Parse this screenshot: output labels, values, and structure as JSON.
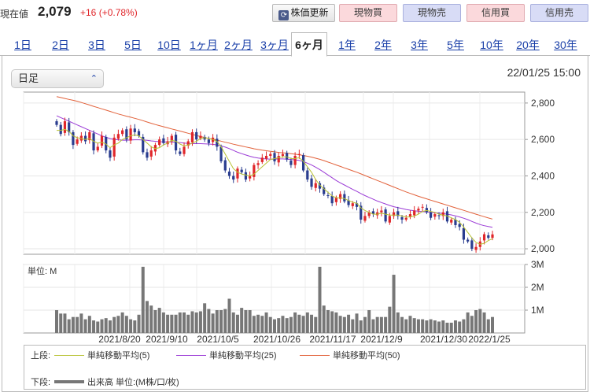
{
  "header": {
    "price_label": "現在値",
    "price": "2,079",
    "change": "+16 (+0.78%)",
    "update_button": "株価更新",
    "trade_buttons": [
      "現物買",
      "現物売",
      "信用買",
      "信用売"
    ]
  },
  "tabs": [
    "1日",
    "2日",
    "3日",
    "5日",
    "10日",
    "1ヶ月",
    "2ヶ月",
    "3ヶ月",
    "6ヶ月",
    "1年",
    "2年",
    "3年",
    "5年",
    "10年",
    "20年",
    "30年"
  ],
  "active_tab": "6ヶ月",
  "period_select": {
    "value": "日足"
  },
  "datetime": "22/01/25 15:00",
  "legend": {
    "upper_label": "上段:",
    "lower_label": "下段:",
    "sma5": "単純移動平均(5)",
    "sma25": "単純移動平均(25)",
    "sma50": "単純移動平均(50)",
    "volume": "出来高 単位:(M株/口/枚)"
  },
  "colors": {
    "up": "#e0262a",
    "down": "#2a3d8f",
    "sma5": "#b8c234",
    "sma25": "#9b3bd6",
    "sma50": "#e2613a",
    "volume": "#777777",
    "accent": "#1a3fa8"
  },
  "chart_data": {
    "type": "candlestick",
    "x_tick_labels": [
      "2021/8/20",
      "2021/9/10",
      "2021/10/5",
      "2021/10/26",
      "2021/11/17",
      "2021/12/9",
      "2021/12/30",
      "2022/1/25"
    ],
    "y_ticks": [
      "2,800",
      "2,600",
      "2,400",
      "2,200",
      "2,000"
    ],
    "ylim": [
      1970,
      2860
    ],
    "volume_ticks": [
      "3M",
      "2M",
      "1M"
    ],
    "volume_unit_label": "単位: M",
    "volume_ylim": [
      0,
      3.0
    ],
    "close": [
      2680,
      2630,
      2700,
      2640,
      2570,
      2600,
      2620,
      2590,
      2640,
      2540,
      2560,
      2620,
      2540,
      2500,
      2610,
      2630,
      2650,
      2600,
      2660,
      2640,
      2620,
      2530,
      2500,
      2540,
      2570,
      2600,
      2580,
      2590,
      2620,
      2540,
      2520,
      2560,
      2590,
      2640,
      2600,
      2620,
      2600,
      2580,
      2610,
      2560,
      2480,
      2430,
      2400,
      2380,
      2440,
      2420,
      2380,
      2400,
      2460,
      2470,
      2500,
      2510,
      2520,
      2480,
      2510,
      2520,
      2490,
      2460,
      2510,
      2520,
      2430,
      2380,
      2340,
      2360,
      2330,
      2300,
      2290,
      2250,
      2280,
      2300,
      2260,
      2240,
      2250,
      2230,
      2160,
      2180,
      2200,
      2190,
      2200,
      2210,
      2150,
      2180,
      2200,
      2180,
      2160,
      2170,
      2190,
      2210,
      2220,
      2230,
      2200,
      2170,
      2190,
      2180,
      2200,
      2150,
      2160,
      2130,
      2120,
      2050,
      2040,
      2000,
      2010,
      2040,
      2080,
      2060,
      2079
    ],
    "sma5": [
      2650,
      2650,
      2655,
      2645,
      2620,
      2610,
      2605,
      2600,
      2605,
      2590,
      2580,
      2585,
      2575,
      2555,
      2570,
      2580,
      2600,
      2610,
      2620,
      2625,
      2620,
      2600,
      2580,
      2560,
      2550,
      2555,
      2570,
      2580,
      2595,
      2590,
      2575,
      2565,
      2570,
      2580,
      2590,
      2605,
      2610,
      2605,
      2600,
      2590,
      2560,
      2520,
      2480,
      2440,
      2420,
      2410,
      2405,
      2400,
      2410,
      2430,
      2450,
      2470,
      2490,
      2495,
      2500,
      2505,
      2505,
      2495,
      2495,
      2500,
      2480,
      2450,
      2420,
      2380,
      2350,
      2330,
      2310,
      2290,
      2280,
      2280,
      2275,
      2265,
      2255,
      2250,
      2225,
      2210,
      2200,
      2190,
      2190,
      2195,
      2190,
      2185,
      2185,
      2185,
      2180,
      2175,
      2175,
      2180,
      2190,
      2205,
      2210,
      2205,
      2200,
      2190,
      2185,
      2180,
      2170,
      2160,
      2145,
      2120,
      2090,
      2060,
      2035,
      2025,
      2030,
      2045,
      2055
    ],
    "sma25": [
      2730,
      2720,
      2710,
      2700,
      2690,
      2680,
      2670,
      2660,
      2650,
      2640,
      2630,
      2620,
      2612,
      2605,
      2600,
      2598,
      2596,
      2596,
      2597,
      2598,
      2598,
      2597,
      2595,
      2592,
      2590,
      2588,
      2587,
      2586,
      2586,
      2585,
      2583,
      2580,
      2578,
      2577,
      2577,
      2577,
      2576,
      2575,
      2573,
      2570,
      2565,
      2558,
      2550,
      2540,
      2530,
      2522,
      2515,
      2508,
      2502,
      2498,
      2495,
      2493,
      2492,
      2492,
      2493,
      2493,
      2492,
      2490,
      2488,
      2485,
      2478,
      2470,
      2460,
      2448,
      2435,
      2420,
      2405,
      2390,
      2375,
      2362,
      2350,
      2338,
      2326,
      2315,
      2303,
      2292,
      2282,
      2272,
      2262,
      2254,
      2246,
      2238,
      2231,
      2226,
      2221,
      2216,
      2212,
      2209,
      2206,
      2204,
      2202,
      2200,
      2198,
      2196,
      2193,
      2190,
      2186,
      2181,
      2175,
      2168,
      2160,
      2150,
      2141,
      2133,
      2127,
      2122,
      2118
    ],
    "sma50": [
      2835,
      2830,
      2825,
      2820,
      2815,
      2810,
      2803,
      2796,
      2789,
      2782,
      2775,
      2768,
      2761,
      2754,
      2747,
      2740,
      2734,
      2728,
      2722,
      2716,
      2710,
      2703,
      2696,
      2689,
      2682,
      2676,
      2670,
      2664,
      2658,
      2652,
      2646,
      2640,
      2634,
      2628,
      2622,
      2616,
      2611,
      2606,
      2601,
      2596,
      2591,
      2585,
      2580,
      2574,
      2569,
      2564,
      2559,
      2554,
      2549,
      2545,
      2541,
      2538,
      2535,
      2532,
      2529,
      2527,
      2525,
      2522,
      2519,
      2516,
      2512,
      2508,
      2503,
      2497,
      2491,
      2484,
      2476,
      2468,
      2460,
      2452,
      2444,
      2436,
      2428,
      2420,
      2411,
      2402,
      2393,
      2384,
      2375,
      2366,
      2357,
      2348,
      2339,
      2330,
      2321,
      2312,
      2304,
      2296,
      2288,
      2281,
      2274,
      2267,
      2260,
      2253,
      2246,
      2239,
      2232,
      2225,
      2218,
      2211,
      2204,
      2197,
      2190,
      2183,
      2176,
      2169,
      2163
    ],
    "volume": [
      1.0,
      0.85,
      0.85,
      0.6,
      0.7,
      0.7,
      0.85,
      0.6,
      0.75,
      0.55,
      0.5,
      0.6,
      0.65,
      0.55,
      0.7,
      0.75,
      0.9,
      0.75,
      0.6,
      0.55,
      0.8,
      2.9,
      1.4,
      1.2,
      1.0,
      1.1,
      0.9,
      0.8,
      0.8,
      0.8,
      0.9,
      0.9,
      0.8,
      0.95,
      0.9,
      0.95,
      1.3,
      1.05,
      0.85,
      1.0,
      1.0,
      1.05,
      1.5,
      0.9,
      0.8,
      1.1,
      1.0,
      1.0,
      0.75,
      0.8,
      0.75,
      0.9,
      0.7,
      0.6,
      0.65,
      0.75,
      0.65,
      0.7,
      0.9,
      0.8,
      0.75,
      0.9,
      0.8,
      0.7,
      2.9,
      1.2,
      1.0,
      0.95,
      0.9,
      0.75,
      0.7,
      0.8,
      0.6,
      0.85,
      0.55,
      0.7,
      1.0,
      0.6,
      0.7,
      0.7,
      0.7,
      1.15,
      2.55,
      0.9,
      0.7,
      0.6,
      0.75,
      0.65,
      0.6,
      0.6,
      0.55,
      0.6,
      0.55,
      0.5,
      0.55,
      0.45,
      0.45,
      0.55,
      0.5,
      0.6,
      0.9,
      0.75,
      1.0,
      1.05,
      0.9,
      0.6,
      0.7
    ]
  }
}
